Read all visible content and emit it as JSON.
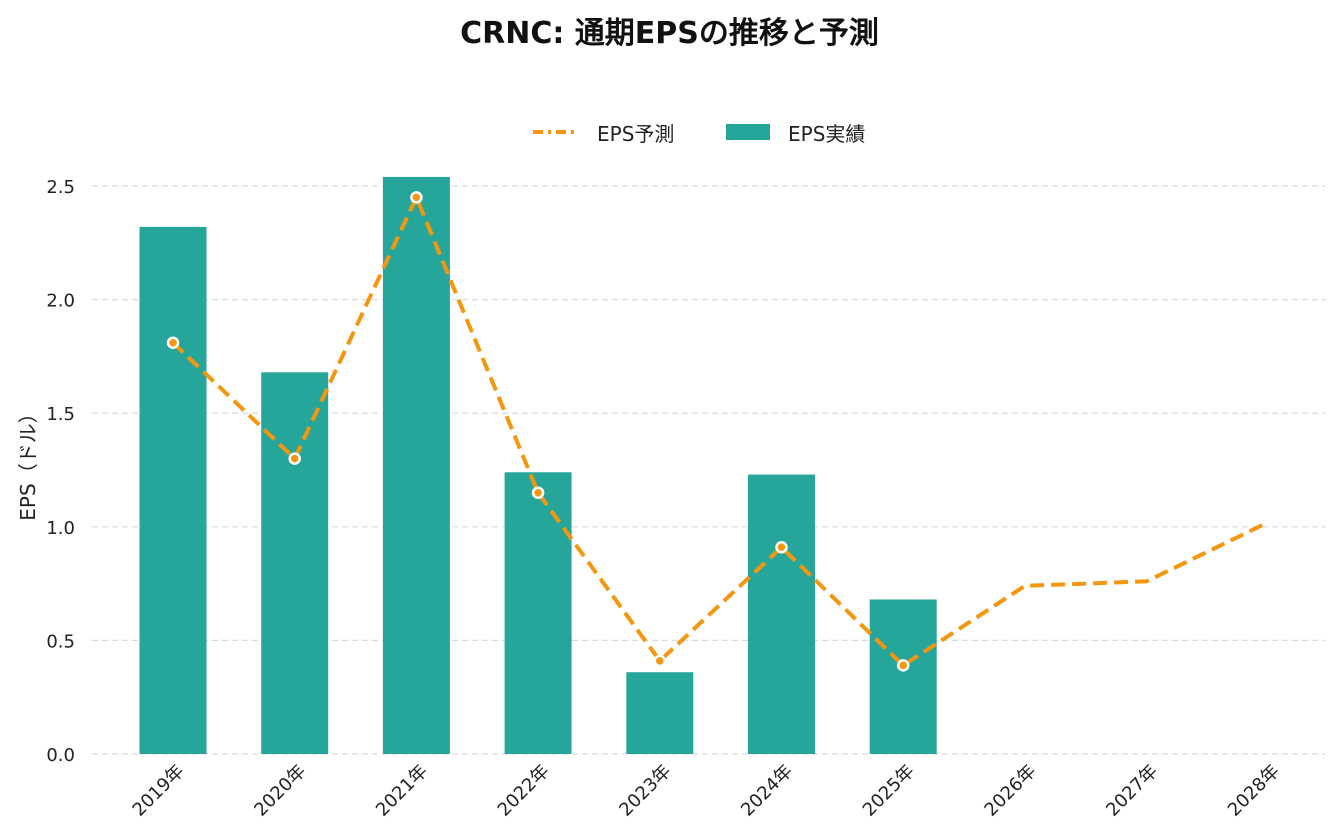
{
  "chart_data": {
    "type": "bar",
    "title": "CRNC: 通期EPSの推移と予測",
    "xlabel": "",
    "ylabel": "EPS（ドル）",
    "ylim": [
      0,
      2.5
    ],
    "yticks": [
      "0.0",
      "0.5",
      "1.0",
      "1.5",
      "2.0",
      "2.5"
    ],
    "grid": true,
    "legend_position": "top-center",
    "categories": [
      "2019年",
      "2020年",
      "2021年",
      "2022年",
      "2023年",
      "2024年",
      "2025年",
      "2026年",
      "2027年",
      "2028年"
    ],
    "series": [
      {
        "name": "EPS実績",
        "type": "bar",
        "color": "#26A69A",
        "values": [
          2.32,
          1.68,
          2.54,
          1.24,
          0.36,
          1.23,
          0.68,
          null,
          null,
          null
        ]
      },
      {
        "name": "EPS予測",
        "type": "line",
        "style": "dashed",
        "color": "#F5960F",
        "values": [
          1.81,
          1.3,
          2.45,
          1.15,
          0.41,
          0.91,
          0.39,
          0.74,
          0.76,
          1.02
        ]
      }
    ]
  }
}
